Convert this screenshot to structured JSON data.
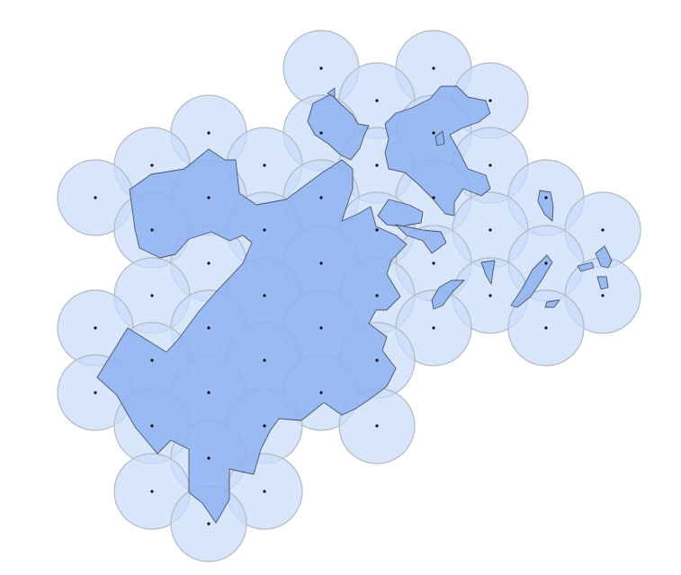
{
  "map": {
    "colors": {
      "circle_fill": "#c9dcfb",
      "circle_fill_opacity": 0.72,
      "circle_stroke": "#b3b8c2",
      "land_fill": "#8fb2f2",
      "land_fill_opacity": 0.85,
      "land_stroke": "#4a5568",
      "dot": "#111111"
    }
  }
}
